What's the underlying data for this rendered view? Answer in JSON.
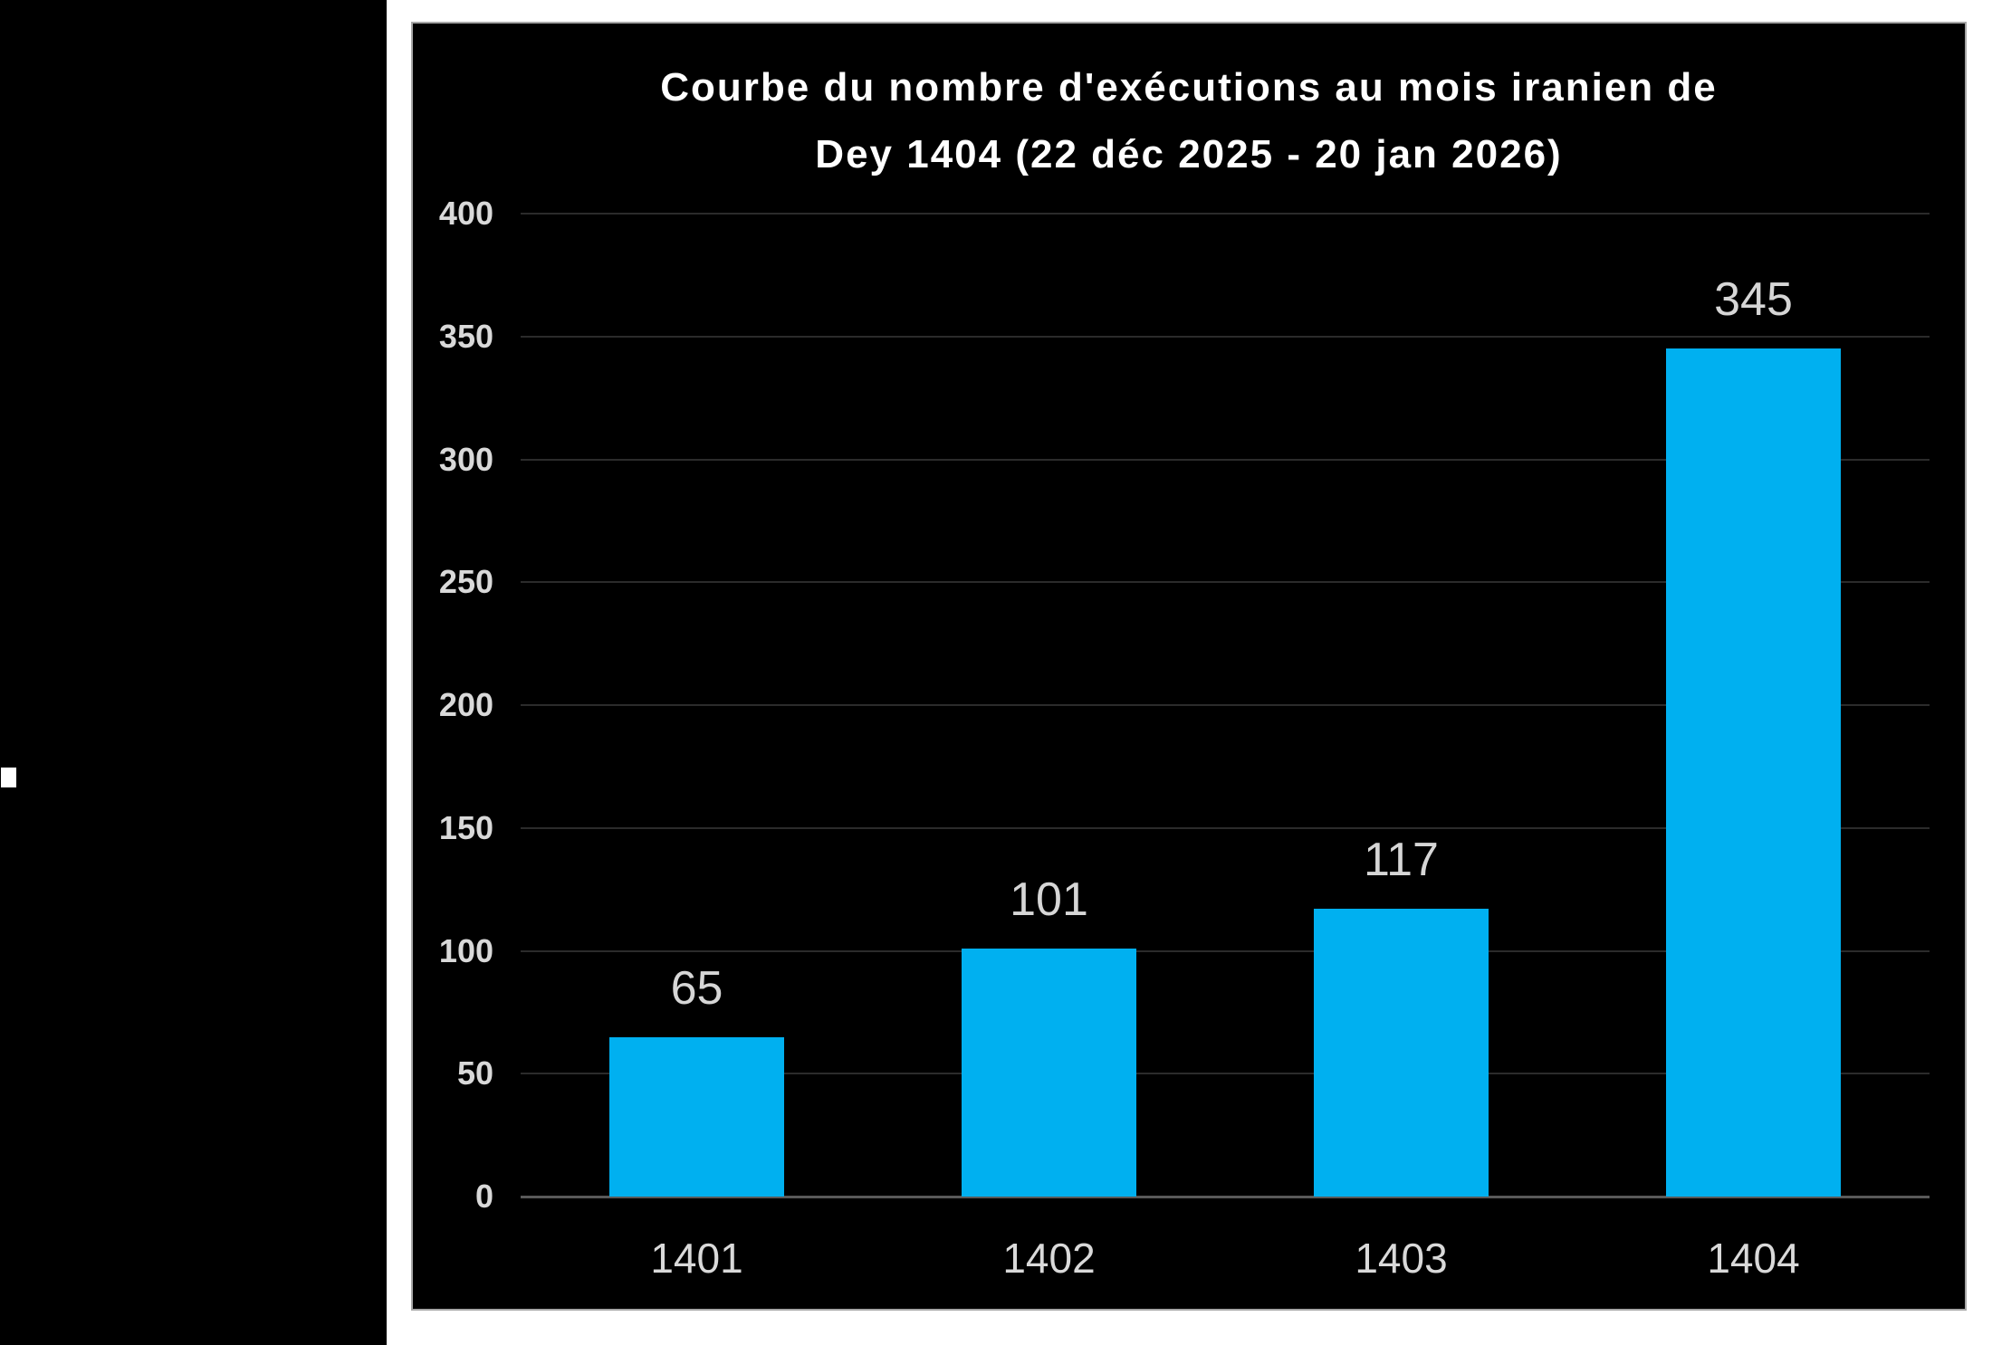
{
  "page": {
    "background_color": "#ffffff",
    "left_strip_color": "#000000",
    "left_strip_marker": "white-square"
  },
  "chart_data": {
    "type": "bar",
    "title": "Courbe du nombre d'exécutions au mois iranien de Dey 1404 (22 déc 2025 - 20 jan 2026)",
    "title_lines": [
      "Courbe du nombre d'exécutions au mois iranien de",
      "Dey 1404 (22 déc 2025 - 20 jan 2026)"
    ],
    "categories": [
      "1401",
      "1402",
      "1403",
      "1404"
    ],
    "values": [
      65,
      101,
      117,
      345
    ],
    "xlabel": "",
    "ylabel": "",
    "ylim": [
      0,
      400
    ],
    "yticks": [
      0,
      50,
      100,
      150,
      200,
      250,
      300,
      350,
      400
    ],
    "grid": true,
    "legend": "none",
    "data_labels": true,
    "colors": {
      "background": "#000000",
      "panel_border": "#a6a6a6",
      "bar": "#00b0f0",
      "title_text": "#ffffff",
      "tick_text": "#d9d9d9",
      "value_label_text": "#d6d6d6",
      "gridline": "#2b2b2b",
      "axis_line": "#595959"
    }
  }
}
